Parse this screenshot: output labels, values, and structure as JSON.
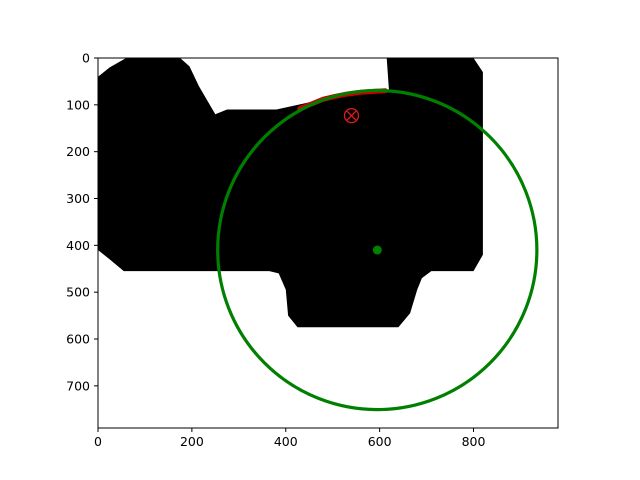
{
  "chart_data": {
    "type": "image-plot",
    "title": "",
    "xlabel": "",
    "ylabel": "",
    "xlim": [
      0,
      980
    ],
    "ylim": [
      790,
      0
    ],
    "x_ticks": [
      0,
      200,
      400,
      600,
      800
    ],
    "y_ticks": [
      0,
      100,
      200,
      300,
      400,
      500,
      600,
      700
    ],
    "grid": false,
    "background_mask": {
      "color": "#000000",
      "outline": [
        [
          25,
          20
        ],
        [
          60,
          0
        ],
        [
          175,
          0
        ],
        [
          195,
          18
        ],
        [
          215,
          60
        ],
        [
          250,
          120
        ],
        [
          275,
          110
        ],
        [
          380,
          110
        ],
        [
          540,
          75
        ],
        [
          620,
          70
        ],
        [
          615,
          0
        ],
        [
          800,
          0
        ],
        [
          820,
          30
        ],
        [
          820,
          420
        ],
        [
          800,
          455
        ],
        [
          710,
          455
        ],
        [
          690,
          470
        ],
        [
          680,
          495
        ],
        [
          665,
          545
        ],
        [
          640,
          575
        ],
        [
          425,
          575
        ],
        [
          405,
          550
        ],
        [
          400,
          495
        ],
        [
          385,
          460
        ],
        [
          365,
          455
        ],
        [
          55,
          455
        ],
        [
          25,
          430
        ],
        [
          0,
          410
        ],
        [
          0,
          40
        ]
      ]
    },
    "circle": {
      "center": [
        595,
        410
      ],
      "radius": 340,
      "color": "#008000"
    },
    "center_point": {
      "x": 595,
      "y": 410,
      "color": "#008000"
    },
    "target_marker": {
      "x": 540,
      "y": 123,
      "color": "#e41a1c"
    },
    "red_arc": {
      "color": "#cc0000",
      "points": [
        [
          430,
          108
        ],
        [
          455,
          98
        ],
        [
          480,
          88
        ],
        [
          505,
          82
        ],
        [
          530,
          77
        ],
        [
          560,
          73
        ],
        [
          590,
          71
        ],
        [
          612,
          70
        ]
      ]
    }
  }
}
